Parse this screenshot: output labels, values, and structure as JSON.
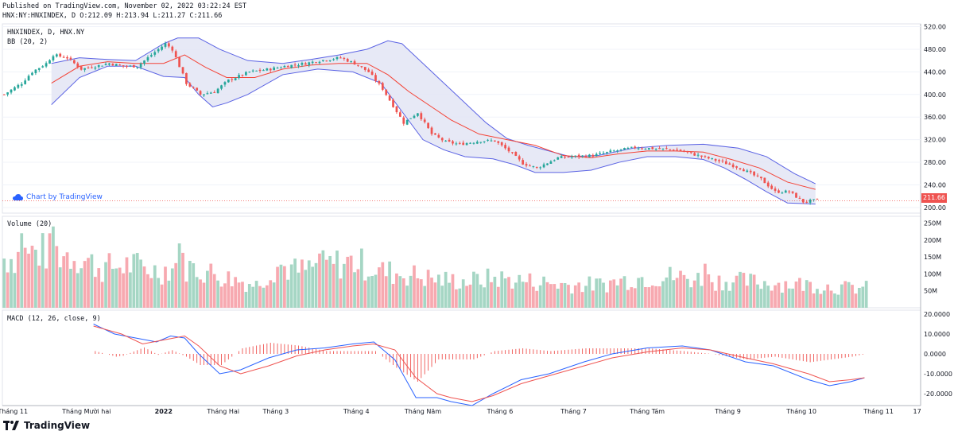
{
  "header": {
    "published": "Published on TradingView.com, November 02, 2022 03:22:24 EST",
    "ohlc": "HNX:NY:HNXINDEX, D O:212.09 H:213.94 L:211.27 C:211.66"
  },
  "watermark": {
    "label": "Chart by TradingView"
  },
  "footer": {
    "brand": "TradingView"
  },
  "colors": {
    "up": "#26a69a",
    "down": "#ef5350",
    "bb_mid": "#f44336",
    "bb_band": "#5b63e4",
    "bb_fill": "#e3e5f5",
    "macd": "#2962ff",
    "signal": "#ef5350",
    "hist": "#ef5350",
    "vol_up": "#a5d6c4",
    "vol_down": "#f7a9b0"
  },
  "chart_data": [
    {
      "type": "candlestick",
      "title": "HNXINDEX, D, HNX.NY",
      "indicator_label": "BB (20, 2)",
      "last_price_label": "211.66",
      "ylim": [
        190,
        525
      ],
      "y_ticks": [
        "520.00",
        "480.00",
        "440.00",
        "400.00",
        "360.00",
        "320.00",
        "280.00",
        "240.00",
        "200.00"
      ],
      "y_tick_values": [
        520,
        480,
        440,
        400,
        360,
        320,
        280,
        240,
        200
      ],
      "close_path": [
        [
          0,
          400
        ],
        [
          5,
          420
        ],
        [
          8,
          440
        ],
        [
          12,
          455
        ],
        [
          14,
          470
        ],
        [
          18,
          465
        ],
        [
          22,
          445
        ],
        [
          26,
          450
        ],
        [
          30,
          455
        ],
        [
          34,
          450
        ],
        [
          38,
          450
        ],
        [
          42,
          470
        ],
        [
          46,
          490
        ],
        [
          48,
          480
        ],
        [
          52,
          420
        ],
        [
          56,
          400
        ],
        [
          60,
          405
        ],
        [
          64,
          425
        ],
        [
          70,
          440
        ],
        [
          76,
          445
        ],
        [
          80,
          450
        ],
        [
          86,
          455
        ],
        [
          90,
          460
        ],
        [
          96,
          465
        ],
        [
          100,
          455
        ],
        [
          104,
          440
        ],
        [
          108,
          410
        ],
        [
          112,
          370
        ],
        [
          114,
          350
        ],
        [
          118,
          368
        ],
        [
          122,
          330
        ],
        [
          126,
          316
        ],
        [
          130,
          312
        ],
        [
          136,
          318
        ],
        [
          140,
          318
        ],
        [
          144,
          300
        ],
        [
          148,
          278
        ],
        [
          152,
          270
        ],
        [
          158,
          288
        ],
        [
          162,
          290
        ],
        [
          168,
          292
        ],
        [
          174,
          300
        ],
        [
          180,
          306
        ],
        [
          186,
          304
        ],
        [
          192,
          302
        ],
        [
          198,
          292
        ],
        [
          204,
          282
        ],
        [
          210,
          270
        ],
        [
          216,
          250
        ],
        [
          220,
          228
        ],
        [
          224,
          228
        ],
        [
          228,
          210
        ],
        [
          232,
          213
        ]
      ],
      "bb_mid_path": [
        [
          14,
          420
        ],
        [
          22,
          450
        ],
        [
          30,
          458
        ],
        [
          38,
          455
        ],
        [
          46,
          455
        ],
        [
          52,
          470
        ],
        [
          58,
          448
        ],
        [
          64,
          430
        ],
        [
          72,
          430
        ],
        [
          80,
          445
        ],
        [
          88,
          452
        ],
        [
          96,
          455
        ],
        [
          104,
          455
        ],
        [
          110,
          435
        ],
        [
          116,
          405
        ],
        [
          122,
          380
        ],
        [
          128,
          355
        ],
        [
          136,
          330
        ],
        [
          144,
          320
        ],
        [
          152,
          310
        ],
        [
          160,
          292
        ],
        [
          168,
          288
        ],
        [
          176,
          295
        ],
        [
          184,
          300
        ],
        [
          192,
          300
        ],
        [
          200,
          298
        ],
        [
          208,
          285
        ],
        [
          216,
          270
        ],
        [
          224,
          245
        ],
        [
          232,
          232
        ]
      ],
      "bb_upper_path": [
        [
          14,
          455
        ],
        [
          22,
          465
        ],
        [
          30,
          462
        ],
        [
          38,
          460
        ],
        [
          46,
          490
        ],
        [
          50,
          500
        ],
        [
          56,
          500
        ],
        [
          62,
          480
        ],
        [
          70,
          460
        ],
        [
          80,
          455
        ],
        [
          88,
          462
        ],
        [
          96,
          470
        ],
        [
          104,
          480
        ],
        [
          110,
          495
        ],
        [
          114,
          490
        ],
        [
          120,
          455
        ],
        [
          126,
          420
        ],
        [
          132,
          385
        ],
        [
          138,
          350
        ],
        [
          144,
          322
        ],
        [
          150,
          310
        ],
        [
          156,
          300
        ],
        [
          162,
          290
        ],
        [
          170,
          292
        ],
        [
          180,
          305
        ],
        [
          190,
          310
        ],
        [
          200,
          312
        ],
        [
          210,
          305
        ],
        [
          218,
          290
        ],
        [
          226,
          260
        ],
        [
          232,
          242
        ]
      ],
      "bb_lower_path": [
        [
          14,
          382
        ],
        [
          22,
          430
        ],
        [
          30,
          450
        ],
        [
          38,
          450
        ],
        [
          46,
          432
        ],
        [
          52,
          430
        ],
        [
          56,
          400
        ],
        [
          60,
          378
        ],
        [
          64,
          385
        ],
        [
          70,
          400
        ],
        [
          80,
          435
        ],
        [
          90,
          445
        ],
        [
          100,
          440
        ],
        [
          108,
          420
        ],
        [
          114,
          370
        ],
        [
          120,
          320
        ],
        [
          126,
          302
        ],
        [
          132,
          290
        ],
        [
          140,
          286
        ],
        [
          146,
          276
        ],
        [
          152,
          262
        ],
        [
          160,
          262
        ],
        [
          168,
          266
        ],
        [
          176,
          280
        ],
        [
          184,
          290
        ],
        [
          192,
          290
        ],
        [
          200,
          285
        ],
        [
          206,
          270
        ],
        [
          212,
          250
        ],
        [
          218,
          228
        ],
        [
          224,
          208
        ],
        [
          232,
          206
        ]
      ],
      "x_ticks": [
        {
          "label": "Tháng 11",
          "day": 3
        },
        {
          "label": "Tháng Mười hai",
          "day": 24
        },
        {
          "label": "2022",
          "day": 46
        },
        {
          "label": "Tháng Hai",
          "day": 63
        },
        {
          "label": "Tháng 3",
          "day": 78
        },
        {
          "label": "Tháng 4",
          "day": 101
        },
        {
          "label": "Tháng Năm",
          "day": 120
        },
        {
          "label": "Tháng 6",
          "day": 142
        },
        {
          "label": "Tháng 7",
          "day": 163
        },
        {
          "label": "Tháng Tám",
          "day": 184
        },
        {
          "label": "Tháng 9",
          "day": 207
        },
        {
          "label": "Tháng 10",
          "day": 228
        },
        {
          "label": "Tháng 11",
          "day": 250
        },
        {
          "label": "17",
          "day": 261
        }
      ]
    },
    {
      "type": "bar",
      "title": "Volume (20)",
      "ylim": [
        0,
        270
      ],
      "y_ticks": [
        "250M",
        "200M",
        "150M",
        "100M",
        "50M"
      ],
      "y_tick_values": [
        250,
        200,
        150,
        100,
        50
      ],
      "volume_path": [
        [
          0,
          150
        ],
        [
          10,
          170
        ],
        [
          20,
          160
        ],
        [
          28,
          120
        ],
        [
          36,
          130
        ],
        [
          44,
          110
        ],
        [
          50,
          130
        ],
        [
          56,
          115
        ],
        [
          64,
          90
        ],
        [
          72,
          70
        ],
        [
          78,
          130
        ],
        [
          84,
          110
        ],
        [
          92,
          130
        ],
        [
          100,
          140
        ],
        [
          108,
          110
        ],
        [
          116,
          100
        ],
        [
          124,
          85
        ],
        [
          132,
          80
        ],
        [
          140,
          90
        ],
        [
          150,
          80
        ],
        [
          160,
          70
        ],
        [
          170,
          70
        ],
        [
          180,
          90
        ],
        [
          190,
          95
        ],
        [
          200,
          85
        ],
        [
          210,
          80
        ],
        [
          220,
          75
        ],
        [
          230,
          70
        ],
        [
          240,
          60
        ],
        [
          246,
          60
        ]
      ],
      "volume_spikes": [
        [
          5,
          220
        ],
        [
          14,
          240
        ],
        [
          50,
          190
        ],
        [
          90,
          160
        ],
        [
          200,
          130
        ]
      ]
    },
    {
      "type": "line",
      "title": "MACD (12, 26, close, 9)",
      "ylim": [
        -26,
        22
      ],
      "y_ticks": [
        "20.0000",
        "10.0000",
        "0.0000",
        "-10.0000",
        "-20.0000"
      ],
      "y_tick_values": [
        20,
        10,
        0,
        -10,
        -20
      ],
      "macd_path": [
        [
          26,
          15
        ],
        [
          32,
          10
        ],
        [
          38,
          8
        ],
        [
          44,
          6
        ],
        [
          48,
          9
        ],
        [
          52,
          8
        ],
        [
          56,
          0
        ],
        [
          62,
          -10
        ],
        [
          68,
          -8
        ],
        [
          76,
          -2
        ],
        [
          84,
          2
        ],
        [
          92,
          3
        ],
        [
          100,
          5
        ],
        [
          106,
          6
        ],
        [
          112,
          -3
        ],
        [
          118,
          -22
        ],
        [
          124,
          -22
        ],
        [
          128,
          -24
        ],
        [
          134,
          -26
        ],
        [
          140,
          -20
        ],
        [
          148,
          -13
        ],
        [
          156,
          -10
        ],
        [
          166,
          -4
        ],
        [
          174,
          0
        ],
        [
          184,
          3
        ],
        [
          194,
          4
        ],
        [
          202,
          2
        ],
        [
          212,
          -4
        ],
        [
          220,
          -6
        ],
        [
          230,
          -13
        ],
        [
          236,
          -16
        ],
        [
          242,
          -14
        ],
        [
          246,
          -12
        ]
      ],
      "signal_path": [
        [
          26,
          14
        ],
        [
          34,
          10
        ],
        [
          40,
          5
        ],
        [
          46,
          7
        ],
        [
          52,
          9
        ],
        [
          56,
          4
        ],
        [
          62,
          -6
        ],
        [
          68,
          -10
        ],
        [
          76,
          -6
        ],
        [
          84,
          -1
        ],
        [
          92,
          2
        ],
        [
          100,
          4
        ],
        [
          106,
          5
        ],
        [
          112,
          2
        ],
        [
          118,
          -12
        ],
        [
          124,
          -20
        ],
        [
          128,
          -22
        ],
        [
          134,
          -24
        ],
        [
          140,
          -21
        ],
        [
          148,
          -15
        ],
        [
          156,
          -11
        ],
        [
          166,
          -6
        ],
        [
          174,
          -2
        ],
        [
          184,
          1
        ],
        [
          194,
          3
        ],
        [
          202,
          2
        ],
        [
          212,
          -2
        ],
        [
          220,
          -5
        ],
        [
          230,
          -10
        ],
        [
          236,
          -14
        ],
        [
          242,
          -13
        ],
        [
          246,
          -12
        ]
      ]
    }
  ]
}
